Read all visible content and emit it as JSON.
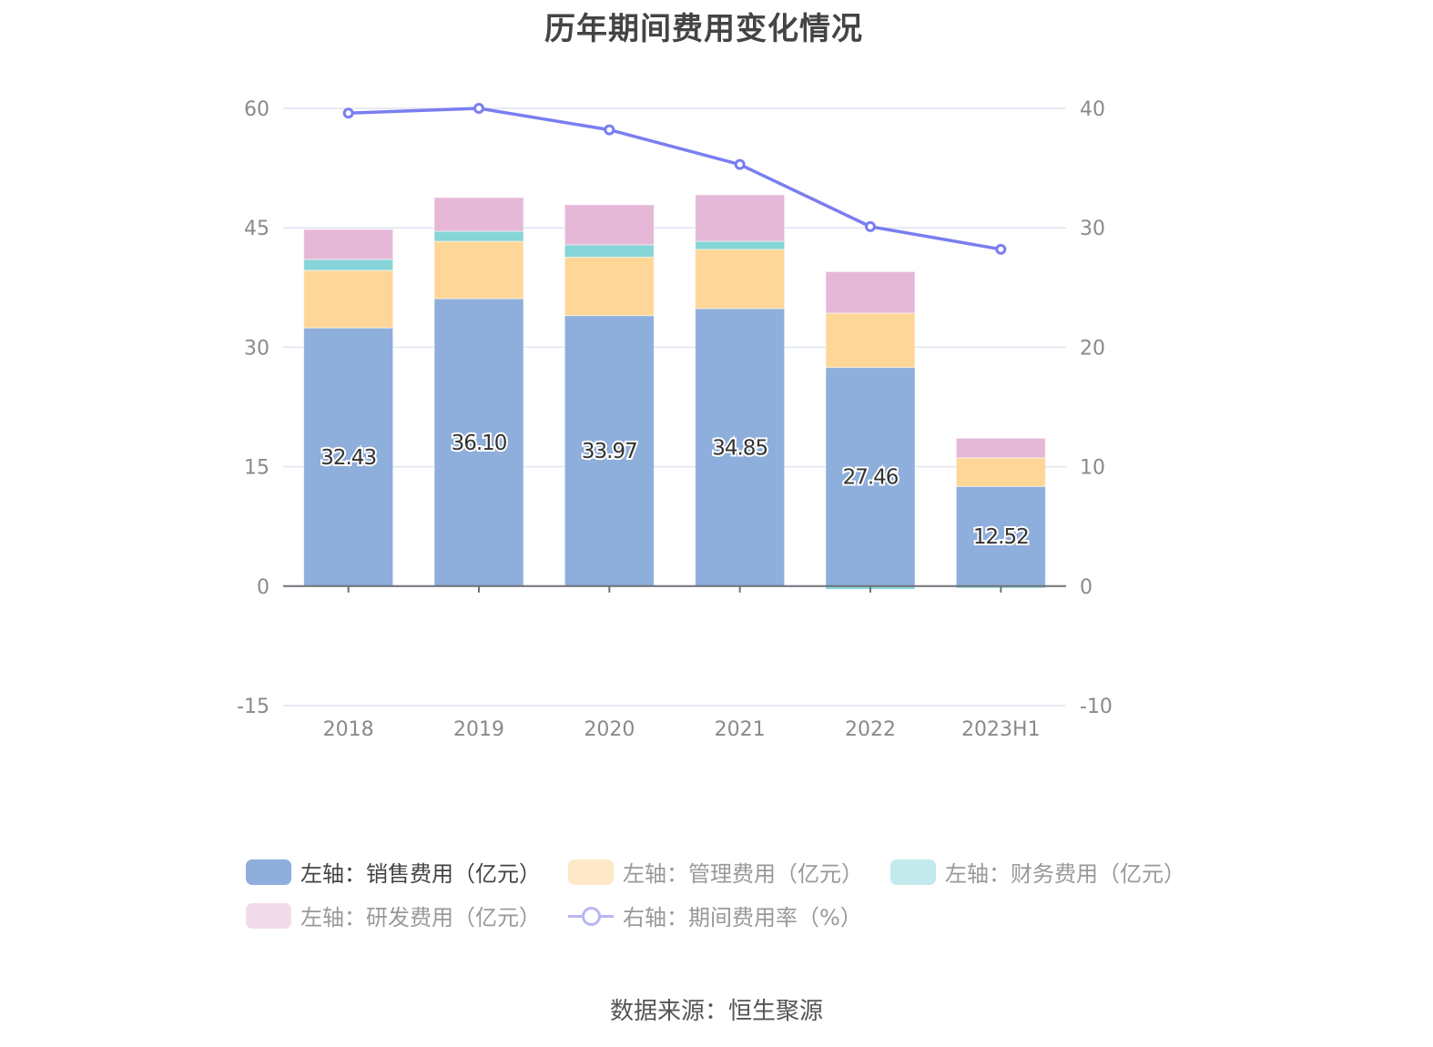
{
  "chart_data": {
    "type": "bar",
    "stacked": true,
    "title": "历年期间费用变化情况",
    "categories": [
      "2018",
      "2019",
      "2020",
      "2021",
      "2022",
      "2023H1"
    ],
    "left_axis": {
      "ylim": [
        -15,
        60
      ],
      "ticks": [
        "-15",
        "0",
        "15",
        "30",
        "45",
        "60"
      ],
      "tick_values": [
        -15,
        0,
        15,
        30,
        45,
        60
      ]
    },
    "right_axis": {
      "ylim": [
        -10,
        40
      ],
      "ticks": [
        "-10",
        "0",
        "10",
        "20",
        "30",
        "40"
      ],
      "tick_values": [
        -10,
        0,
        10,
        20,
        30,
        40
      ]
    },
    "grid": true,
    "series": [
      {
        "name": "左轴：销售费用（亿元）",
        "axis": "left",
        "type": "bar",
        "color": "#8eaedb",
        "values": [
          32.43,
          36.1,
          33.97,
          34.85,
          27.46,
          12.52
        ],
        "labels": [
          "32.43",
          "36.10",
          "33.97",
          "34.85",
          "27.46",
          "12.52"
        ]
      },
      {
        "name": "左轴：管理费用（亿元）",
        "axis": "left",
        "type": "bar",
        "color": "#fed798",
        "values": [
          7.23,
          7.21,
          7.34,
          7.44,
          6.83,
          3.59
        ]
      },
      {
        "name": "左轴：财务费用（亿元）",
        "axis": "left",
        "type": "bar",
        "color": "#86d5d8",
        "values": [
          1.37,
          1.26,
          1.55,
          1.02,
          -0.4,
          -0.25
        ]
      },
      {
        "name": "左轴：研发费用（亿元）",
        "axis": "left",
        "type": "bar",
        "color": "#e6b8d8",
        "values": [
          3.77,
          4.23,
          5.03,
          5.83,
          5.2,
          2.46
        ]
      },
      {
        "name": "右轴：期间费用率（%）",
        "axis": "right",
        "type": "line",
        "color": "#7a7ef0",
        "values": [
          39.6,
          40.0,
          38.2,
          35.3,
          30.1,
          28.2
        ]
      }
    ],
    "legend_position": "bottom"
  },
  "legend": {
    "items": [
      {
        "label": "左轴：销售费用（亿元）",
        "color": "#8eaedb",
        "active": true
      },
      {
        "label": "左轴：管理费用（亿元）",
        "color": "#fde8c8",
        "active": false
      },
      {
        "label": "左轴：财务费用（亿元）",
        "color": "#c2e9ec",
        "active": false
      },
      {
        "label": "左轴：研发费用（亿元）",
        "color": "#f3dcea",
        "active": false
      },
      {
        "label": "右轴：期间费用率（%）",
        "color": "#b7b7f3",
        "active": false
      }
    ]
  },
  "source": "数据来源：恒生聚源"
}
